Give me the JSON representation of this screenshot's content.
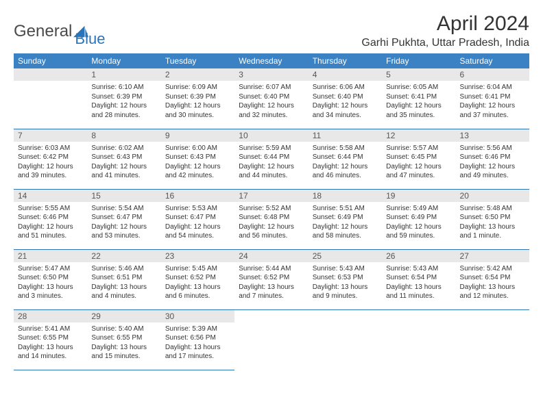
{
  "brand": {
    "part1": "General",
    "part2": "Blue"
  },
  "title": "April 2024",
  "location": "Garhi Pukhta, Uttar Pradesh, India",
  "colors": {
    "header_bg": "#3b82c4",
    "header_text": "#ffffff",
    "daynum_bg": "#e8e8e8",
    "border": "#2a74b8",
    "text": "#333333",
    "brand_gray": "#4a4a4a",
    "brand_blue": "#2a74b8"
  },
  "weekdays": [
    "Sunday",
    "Monday",
    "Tuesday",
    "Wednesday",
    "Thursday",
    "Friday",
    "Saturday"
  ],
  "weeks": [
    [
      null,
      {
        "n": "1",
        "sunrise": "Sunrise: 6:10 AM",
        "sunset": "Sunset: 6:39 PM",
        "day1": "Daylight: 12 hours",
        "day2": "and 28 minutes."
      },
      {
        "n": "2",
        "sunrise": "Sunrise: 6:09 AM",
        "sunset": "Sunset: 6:39 PM",
        "day1": "Daylight: 12 hours",
        "day2": "and 30 minutes."
      },
      {
        "n": "3",
        "sunrise": "Sunrise: 6:07 AM",
        "sunset": "Sunset: 6:40 PM",
        "day1": "Daylight: 12 hours",
        "day2": "and 32 minutes."
      },
      {
        "n": "4",
        "sunrise": "Sunrise: 6:06 AM",
        "sunset": "Sunset: 6:40 PM",
        "day1": "Daylight: 12 hours",
        "day2": "and 34 minutes."
      },
      {
        "n": "5",
        "sunrise": "Sunrise: 6:05 AM",
        "sunset": "Sunset: 6:41 PM",
        "day1": "Daylight: 12 hours",
        "day2": "and 35 minutes."
      },
      {
        "n": "6",
        "sunrise": "Sunrise: 6:04 AM",
        "sunset": "Sunset: 6:41 PM",
        "day1": "Daylight: 12 hours",
        "day2": "and 37 minutes."
      }
    ],
    [
      {
        "n": "7",
        "sunrise": "Sunrise: 6:03 AM",
        "sunset": "Sunset: 6:42 PM",
        "day1": "Daylight: 12 hours",
        "day2": "and 39 minutes."
      },
      {
        "n": "8",
        "sunrise": "Sunrise: 6:02 AM",
        "sunset": "Sunset: 6:43 PM",
        "day1": "Daylight: 12 hours",
        "day2": "and 41 minutes."
      },
      {
        "n": "9",
        "sunrise": "Sunrise: 6:00 AM",
        "sunset": "Sunset: 6:43 PM",
        "day1": "Daylight: 12 hours",
        "day2": "and 42 minutes."
      },
      {
        "n": "10",
        "sunrise": "Sunrise: 5:59 AM",
        "sunset": "Sunset: 6:44 PM",
        "day1": "Daylight: 12 hours",
        "day2": "and 44 minutes."
      },
      {
        "n": "11",
        "sunrise": "Sunrise: 5:58 AM",
        "sunset": "Sunset: 6:44 PM",
        "day1": "Daylight: 12 hours",
        "day2": "and 46 minutes."
      },
      {
        "n": "12",
        "sunrise": "Sunrise: 5:57 AM",
        "sunset": "Sunset: 6:45 PM",
        "day1": "Daylight: 12 hours",
        "day2": "and 47 minutes."
      },
      {
        "n": "13",
        "sunrise": "Sunrise: 5:56 AM",
        "sunset": "Sunset: 6:46 PM",
        "day1": "Daylight: 12 hours",
        "day2": "and 49 minutes."
      }
    ],
    [
      {
        "n": "14",
        "sunrise": "Sunrise: 5:55 AM",
        "sunset": "Sunset: 6:46 PM",
        "day1": "Daylight: 12 hours",
        "day2": "and 51 minutes."
      },
      {
        "n": "15",
        "sunrise": "Sunrise: 5:54 AM",
        "sunset": "Sunset: 6:47 PM",
        "day1": "Daylight: 12 hours",
        "day2": "and 53 minutes."
      },
      {
        "n": "16",
        "sunrise": "Sunrise: 5:53 AM",
        "sunset": "Sunset: 6:47 PM",
        "day1": "Daylight: 12 hours",
        "day2": "and 54 minutes."
      },
      {
        "n": "17",
        "sunrise": "Sunrise: 5:52 AM",
        "sunset": "Sunset: 6:48 PM",
        "day1": "Daylight: 12 hours",
        "day2": "and 56 minutes."
      },
      {
        "n": "18",
        "sunrise": "Sunrise: 5:51 AM",
        "sunset": "Sunset: 6:49 PM",
        "day1": "Daylight: 12 hours",
        "day2": "and 58 minutes."
      },
      {
        "n": "19",
        "sunrise": "Sunrise: 5:49 AM",
        "sunset": "Sunset: 6:49 PM",
        "day1": "Daylight: 12 hours",
        "day2": "and 59 minutes."
      },
      {
        "n": "20",
        "sunrise": "Sunrise: 5:48 AM",
        "sunset": "Sunset: 6:50 PM",
        "day1": "Daylight: 13 hours",
        "day2": "and 1 minute."
      }
    ],
    [
      {
        "n": "21",
        "sunrise": "Sunrise: 5:47 AM",
        "sunset": "Sunset: 6:50 PM",
        "day1": "Daylight: 13 hours",
        "day2": "and 3 minutes."
      },
      {
        "n": "22",
        "sunrise": "Sunrise: 5:46 AM",
        "sunset": "Sunset: 6:51 PM",
        "day1": "Daylight: 13 hours",
        "day2": "and 4 minutes."
      },
      {
        "n": "23",
        "sunrise": "Sunrise: 5:45 AM",
        "sunset": "Sunset: 6:52 PM",
        "day1": "Daylight: 13 hours",
        "day2": "and 6 minutes."
      },
      {
        "n": "24",
        "sunrise": "Sunrise: 5:44 AM",
        "sunset": "Sunset: 6:52 PM",
        "day1": "Daylight: 13 hours",
        "day2": "and 7 minutes."
      },
      {
        "n": "25",
        "sunrise": "Sunrise: 5:43 AM",
        "sunset": "Sunset: 6:53 PM",
        "day1": "Daylight: 13 hours",
        "day2": "and 9 minutes."
      },
      {
        "n": "26",
        "sunrise": "Sunrise: 5:43 AM",
        "sunset": "Sunset: 6:54 PM",
        "day1": "Daylight: 13 hours",
        "day2": "and 11 minutes."
      },
      {
        "n": "27",
        "sunrise": "Sunrise: 5:42 AM",
        "sunset": "Sunset: 6:54 PM",
        "day1": "Daylight: 13 hours",
        "day2": "and 12 minutes."
      }
    ],
    [
      {
        "n": "28",
        "sunrise": "Sunrise: 5:41 AM",
        "sunset": "Sunset: 6:55 PM",
        "day1": "Daylight: 13 hours",
        "day2": "and 14 minutes."
      },
      {
        "n": "29",
        "sunrise": "Sunrise: 5:40 AM",
        "sunset": "Sunset: 6:55 PM",
        "day1": "Daylight: 13 hours",
        "day2": "and 15 minutes."
      },
      {
        "n": "30",
        "sunrise": "Sunrise: 5:39 AM",
        "sunset": "Sunset: 6:56 PM",
        "day1": "Daylight: 13 hours",
        "day2": "and 17 minutes."
      },
      null,
      null,
      null,
      null
    ]
  ]
}
